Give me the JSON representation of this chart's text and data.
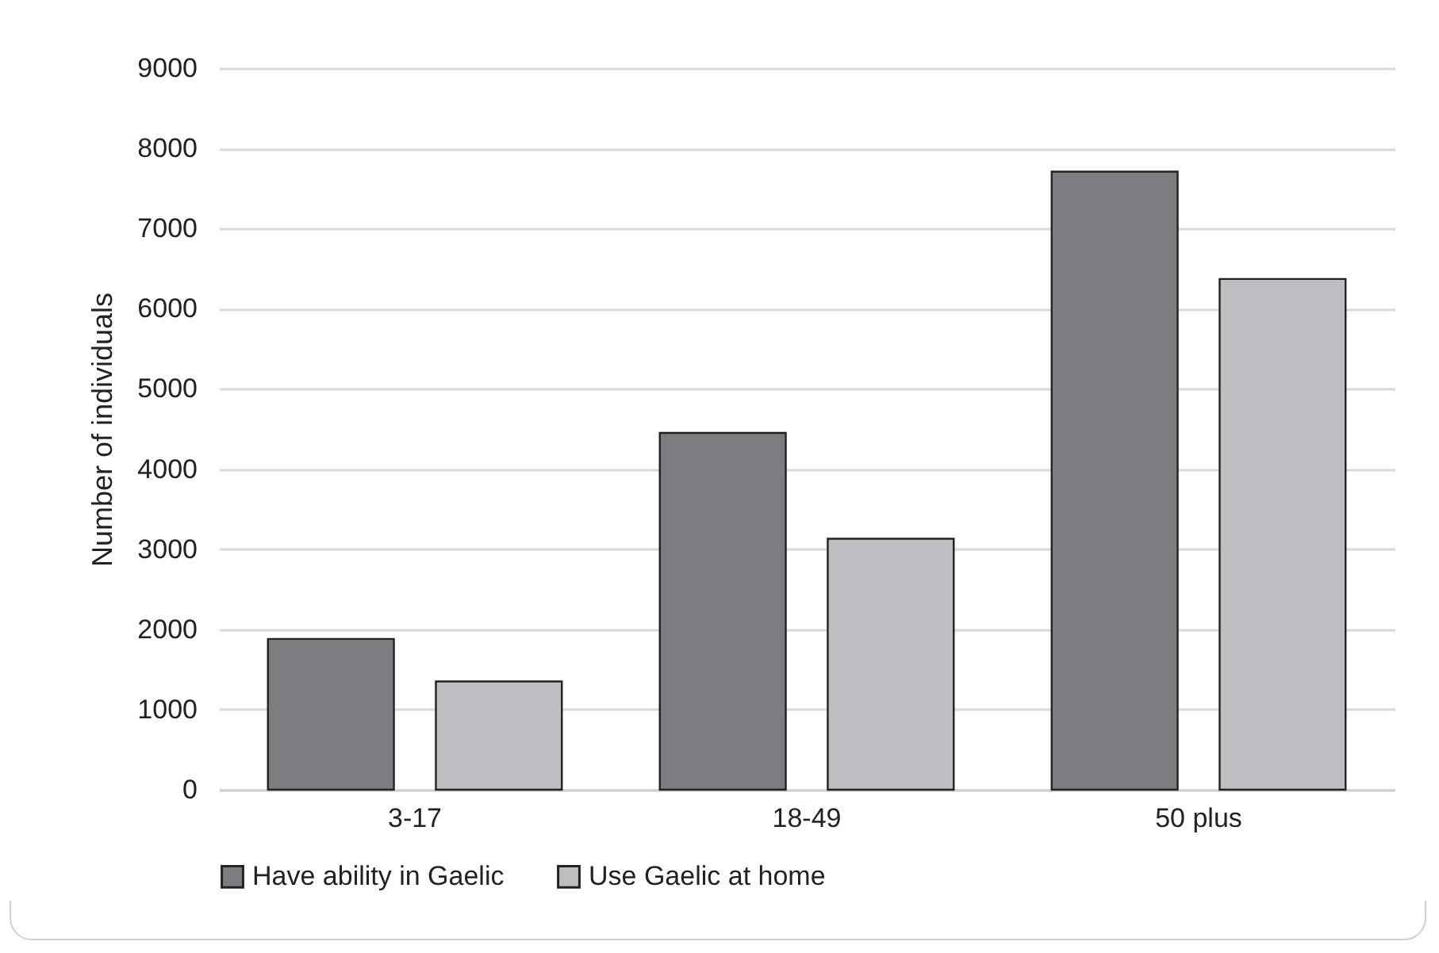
{
  "chart_data": {
    "type": "bar",
    "ylabel": "Number of individuals",
    "categories": [
      "3-17",
      "18-49",
      "50 plus"
    ],
    "series": [
      {
        "name": "Have ability in Gaelic",
        "color": "#7c7d80",
        "values": [
          1880,
          4450,
          7710
        ]
      },
      {
        "name": "Use Gaelic at home",
        "color": "#bdbec1",
        "values": [
          1350,
          3130,
          6370
        ]
      }
    ],
    "ylim": [
      0,
      9000
    ],
    "yticks": [
      0,
      1000,
      2000,
      3000,
      4000,
      5000,
      6000,
      7000,
      8000,
      9000
    ],
    "grid": "y",
    "legend": "bottom"
  }
}
